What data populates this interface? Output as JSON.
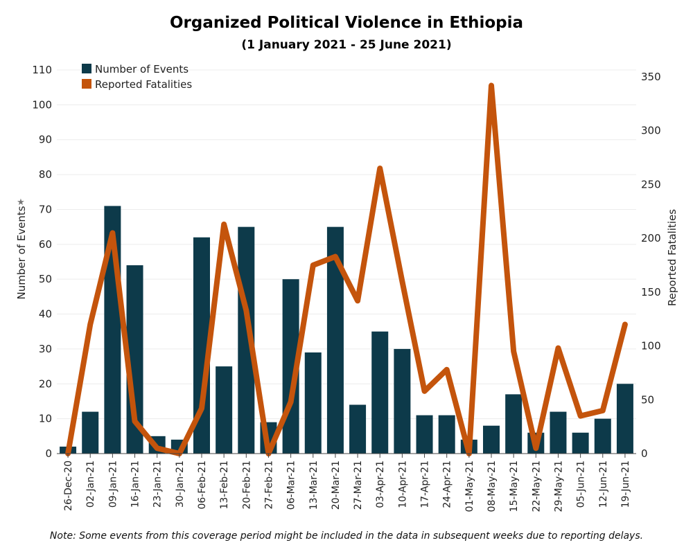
{
  "title": "Organized Political Violence in Ethiopia",
  "subtitle": "(1 January 2021 - 25 June 2021)",
  "note": "Note: Some events from this coverage period might be included in the data in subsequent weeks due to reporting delays.",
  "colors": {
    "events": "#0d3a4a",
    "fatalities": "#c4540c",
    "grid": "#ececec"
  },
  "chart_data": {
    "type": "bar",
    "title": "Organized Political Violence in Ethiopia",
    "subtitle": "(1 January 2021 - 25 June 2021)",
    "xlabel": "",
    "ylabel": "Number of Events",
    "y2label": "Reported Fatalities",
    "ylim": [
      0,
      110
    ],
    "y2lim": [
      0,
      350
    ],
    "yticks": [
      0,
      10,
      20,
      30,
      40,
      50,
      60,
      70,
      80,
      90,
      100,
      110
    ],
    "y2ticks": [
      0,
      50,
      100,
      150,
      200,
      250,
      300,
      350
    ],
    "grid": true,
    "legend_position": "top-left",
    "categories": [
      "26-Dec-20",
      "02-Jan-21",
      "09-Jan-21",
      "16-Jan-21",
      "23-Jan-21",
      "30-Jan-21",
      "06-Feb-21",
      "13-Feb-21",
      "20-Feb-21",
      "27-Feb-21",
      "06-Mar-21",
      "13-Mar-21",
      "20-Mar-21",
      "27-Mar-21",
      "03-Apr-21",
      "10-Apr-21",
      "17-Apr-21",
      "24-Apr-21",
      "01-May-21",
      "08-May-21",
      "15-May-21",
      "22-May-21",
      "29-May-21",
      "05-Jun-21",
      "12-Jun-21",
      "19-Jun-21"
    ],
    "series": [
      {
        "name": "Number of Events",
        "type": "bar",
        "axis": "left",
        "values": [
          2,
          12,
          71,
          54,
          5,
          4,
          62,
          25,
          65,
          9,
          50,
          29,
          65,
          14,
          35,
          30,
          11,
          11,
          4,
          8,
          17,
          6,
          12,
          6,
          10,
          20
        ]
      },
      {
        "name": "Reported Fatalities",
        "type": "line",
        "axis": "right",
        "values": [
          0,
          120,
          205,
          30,
          5,
          0,
          42,
          213,
          133,
          0,
          48,
          175,
          183,
          142,
          265,
          160,
          58,
          78,
          0,
          342,
          95,
          5,
          98,
          35,
          40,
          120
        ]
      }
    ]
  }
}
